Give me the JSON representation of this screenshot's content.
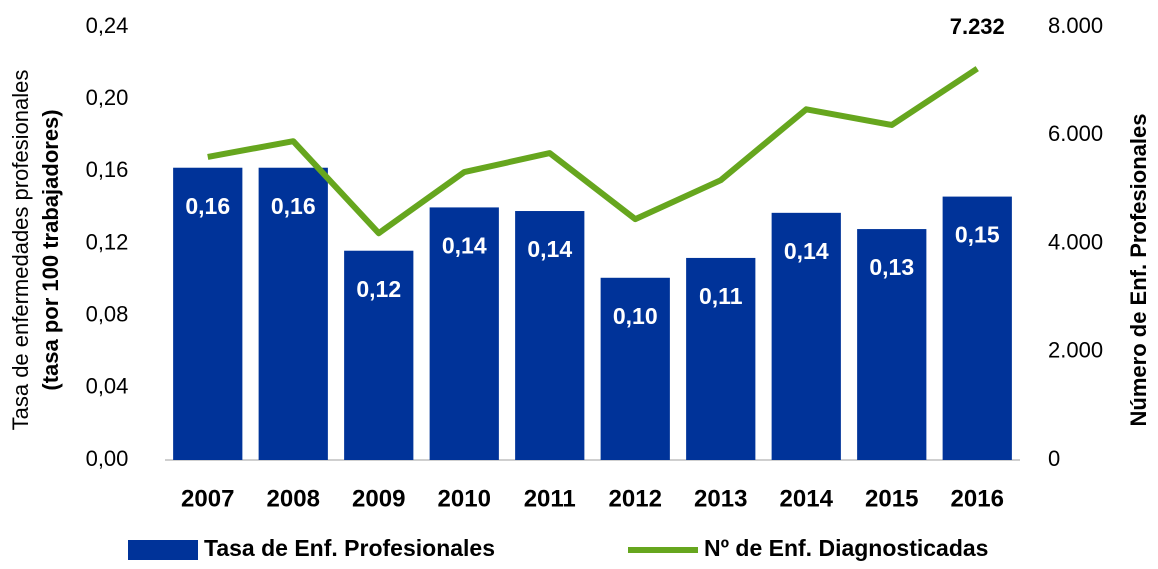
{
  "chart_data": {
    "type": "bar_line",
    "ylabel": [
      "Tasa de enfermedades profesionales",
      "(tasa por 100 trabajadores)"
    ],
    "y2label": "Número de Enf. Profesionales",
    "categories": [
      "2007",
      "2008",
      "2009",
      "2010",
      "2011",
      "2012",
      "2013",
      "2014",
      "2015",
      "2016"
    ],
    "series": [
      {
        "name": "Tasa de Enf. Profesionales",
        "color": "#003399",
        "kind": "bar",
        "values": [
          0.162,
          0.162,
          0.116,
          0.14,
          0.138,
          0.101,
          0.112,
          0.137,
          0.128,
          0.146
        ],
        "value_labels": [
          "0,16",
          "0,16",
          "0,12",
          "0,14",
          "0,14",
          "0,10",
          "0,11",
          "0,14",
          "0,13",
          "0,15"
        ]
      },
      {
        "name": "Nº de Enf. Diagnosticadas",
        "color": "#66a61e",
        "kind": "line",
        "axis": "y2",
        "values": [
          5600,
          5890,
          4190,
          5320,
          5670,
          4450,
          5170,
          6480,
          6190,
          7232
        ],
        "value_labels": [
          null,
          null,
          null,
          null,
          null,
          null,
          null,
          null,
          null,
          "7.232"
        ]
      }
    ],
    "ylim": [
      0,
      0.24
    ],
    "yticks": [
      {
        "value": 0,
        "label": "0,00"
      },
      {
        "value": 0.04,
        "label": "0,04"
      },
      {
        "value": 0.08,
        "label": "0,08"
      },
      {
        "value": 0.12,
        "label": "0,12"
      },
      {
        "value": 0.16,
        "label": "0,16"
      },
      {
        "value": 0.2,
        "label": "0,20"
      },
      {
        "value": 0.24,
        "label": "0,24"
      }
    ],
    "y2lim": [
      0,
      8000
    ],
    "y2ticks": [
      0,
      {
        "value": 2000,
        "label": "2.000"
      },
      {
        "value": 4000,
        "label": "4.000"
      },
      {
        "value": 6000,
        "label": "6.000"
      },
      {
        "value": 8000,
        "label": "8.000"
      }
    ],
    "legend": "bottom",
    "grid": false
  }
}
